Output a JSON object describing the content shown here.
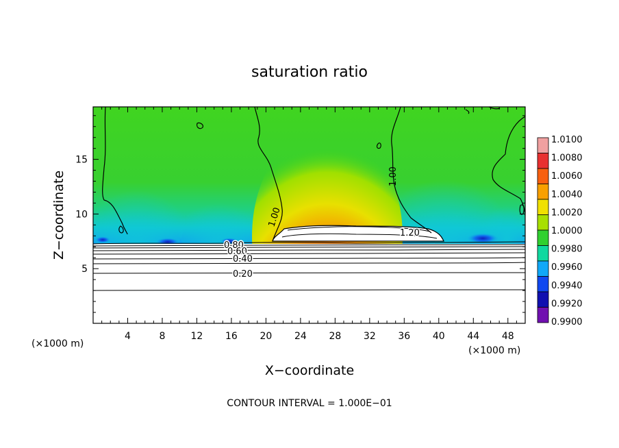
{
  "chart_data": {
    "type": "heatmap",
    "title": "saturation ratio",
    "xlabel": "X−coordinate",
    "ylabel": "Z−coordinate",
    "x_unit": "(×1000 m)",
    "y_unit": "(×1000 m)",
    "xlim": [
      0,
      50
    ],
    "ylim": [
      0,
      19.8
    ],
    "x_ticks": [
      4,
      8,
      12,
      16,
      20,
      24,
      28,
      32,
      36,
      40,
      44,
      48
    ],
    "y_ticks": [
      5,
      10,
      15
    ],
    "x_tick_labels": [
      "4",
      "8",
      "12",
      "16",
      "20",
      "24",
      "28",
      "32",
      "36",
      "40",
      "44",
      "48"
    ],
    "y_tick_labels": [
      "5",
      "10",
      "15"
    ],
    "colorbar": {
      "min": 0.99,
      "max": 1.01,
      "labels": [
        "1.0100",
        "1.0080",
        "1.0060",
        "1.0040",
        "1.0020",
        "1.0000",
        "0.9980",
        "0.9960",
        "0.9940",
        "0.9920",
        "0.9900"
      ],
      "colors": [
        "#f0a0a0",
        "#e83030",
        "#f86010",
        "#f8a000",
        "#f0e000",
        "#a8e000",
        "#30d030",
        "#10d8a0",
        "#10a8f8",
        "#1048f0",
        "#1010b0",
        "#7010b0"
      ]
    },
    "contour_labels": [
      {
        "text": "0.80",
        "x": 17.0,
        "z": 7.0
      },
      {
        "text": "0.60",
        "x": 17.3,
        "z": 6.6
      },
      {
        "text": "0.40",
        "x": 17.8,
        "z": 5.8
      },
      {
        "text": "0.20",
        "x": 18.0,
        "z": 4.6
      },
      {
        "text": "1.00",
        "x": 21.0,
        "z": 9.6
      },
      {
        "text": "1.00",
        "x": 35.0,
        "z": 13.0
      },
      {
        "text": "1.20",
        "x": 37.2,
        "z": 8.5
      }
    ],
    "annotation": "CONTOUR INTERVAL = 1.000E−01"
  }
}
